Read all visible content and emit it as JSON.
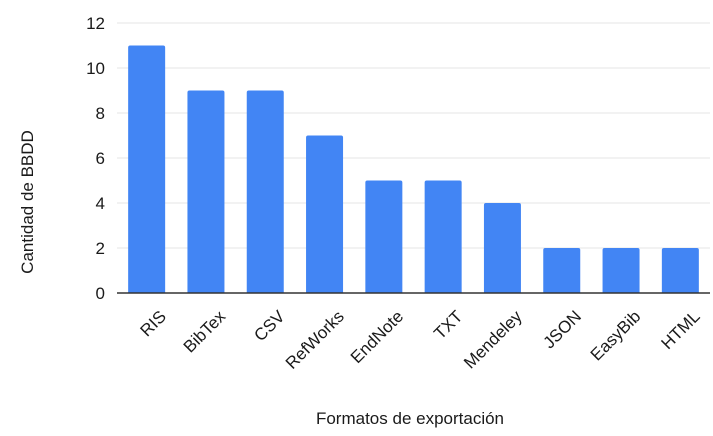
{
  "chart_data": {
    "type": "bar",
    "title": "",
    "xlabel": "Formatos de exportación",
    "ylabel": "Cantidad de BBDD",
    "categories": [
      "RIS",
      "BibTex",
      "CSV",
      "RefWorks",
      "EndNote",
      "TXT",
      "Mendeley",
      "JSON",
      "EasyBib",
      "HTML"
    ],
    "values": [
      11,
      9,
      9,
      7,
      5,
      5,
      4,
      2,
      2,
      2
    ],
    "ylim": [
      0,
      12
    ],
    "yticks": [
      0,
      2,
      4,
      6,
      8,
      10,
      12
    ],
    "grid": true,
    "legend": "none",
    "colors": {
      "bar": "#4285f4",
      "grid": "#e5e5e5",
      "axis": "#333333",
      "text": "#1a1a1a"
    }
  }
}
